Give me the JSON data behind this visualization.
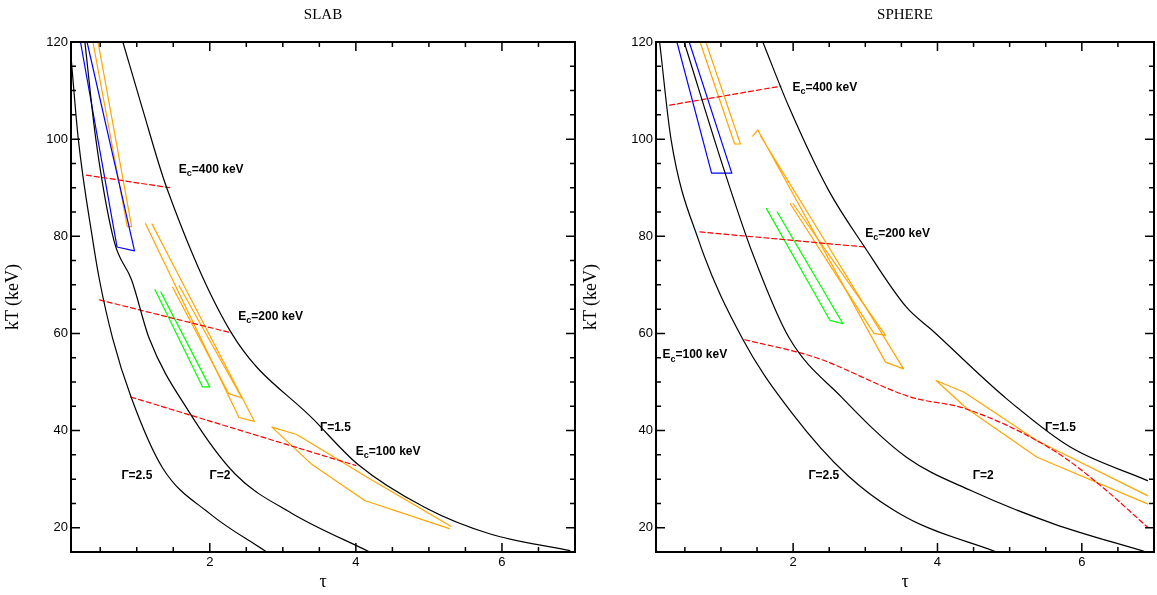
{
  "chart_data": [
    {
      "type": "line",
      "title": "SLAB",
      "xlabel": "τ",
      "ylabel": "kT (keV)",
      "marker": "none",
      "xlim": [
        0.1,
        7
      ],
      "ylim": [
        15,
        120
      ],
      "xticks": [
        {
          "value": 0.5,
          "label": null
        },
        {
          "value": 1,
          "label": null
        },
        {
          "value": 1.5,
          "label": null
        },
        2,
        {
          "value": 2.5,
          "label": null
        },
        {
          "value": 3,
          "label": null
        },
        {
          "value": 3.5,
          "label": null
        },
        4,
        {
          "value": 4.5,
          "label": null
        },
        {
          "value": 5,
          "label": null
        },
        {
          "value": 5.5,
          "label": null
        },
        6,
        {
          "value": 6.5,
          "label": null
        }
      ],
      "yticks": [
        20,
        {
          "value": 25,
          "label": null
        },
        {
          "value": 30,
          "label": null
        },
        {
          "value": 35,
          "label": null
        },
        40,
        {
          "value": 45,
          "label": null
        },
        {
          "value": 50,
          "label": null
        },
        {
          "value": 55,
          "label": null
        },
        60,
        {
          "value": 65,
          "label": null
        },
        {
          "value": 70,
          "label": null
        },
        {
          "value": 75,
          "label": null
        },
        80,
        {
          "value": 85,
          "label": null
        },
        {
          "value": 90,
          "label": null
        },
        {
          "value": 95,
          "label": null
        },
        100,
        {
          "value": 105,
          "label": null
        },
        {
          "value": 110,
          "label": null
        },
        {
          "value": 115,
          "label": null
        },
        120
      ],
      "series": [
        {
          "color": "#000000",
          "x": [
            0.1,
            0.2,
            0.4,
            0.49,
            0.67,
            0.92,
            1.35,
            2.0,
            2.78
          ],
          "values": [
            117,
            100,
            79,
            71,
            59,
            47,
            32.4,
            22.9,
            15
          ]
        },
        {
          "color": "#000000",
          "x": [
            0.29,
            0.44,
            0.69,
            0.93,
            1.17,
            1.71,
            2.35,
            3.12,
            4.19
          ],
          "values": [
            120,
            100,
            79,
            71,
            59,
            44,
            31,
            23,
            15
          ]
        },
        {
          "color": "#000000",
          "x": [
            0.81,
            1.07,
            1.41,
            2.3,
            3.44,
            4.03,
            4.94,
            5.84,
            6.93
          ],
          "values": [
            120,
            106.7,
            90,
            60,
            42,
            33,
            24.2,
            18.7,
            15.3
          ]
        },
        {
          "color": "#ff0000",
          "line_style": "dashed",
          "x": [
            0.31,
            1.45
          ],
          "values": [
            92.6,
            90
          ]
        },
        {
          "color": "#ff0000",
          "line_style": "dashed",
          "x": [
            0.49,
            2.3
          ],
          "values": [
            66.9,
            60.1
          ]
        },
        {
          "color": "#ff0000",
          "line_style": "dashed",
          "x": [
            0.92,
            4.0
          ],
          "values": [
            46.9,
            32.8
          ]
        },
        {
          "color": "#0000ff",
          "x": [
            0.23,
            0.73,
            0.97,
            0.32
          ],
          "values": [
            120,
            77.8,
            77,
            120
          ]
        },
        {
          "color": "#ffa500",
          "x": [
            0.4,
            0.87,
            0.93,
            0.47
          ],
          "values": [
            120,
            82,
            82,
            120
          ]
        },
        {
          "color": "#ffa500",
          "x": [
            1.12,
            2.4,
            2.61,
            1.21
          ],
          "values": [
            82.6,
            42.7,
            41.9,
            82.5
          ]
        },
        {
          "color": "#ffa500",
          "x": [
            1.49,
            2.26,
            2.44,
            1.58
          ],
          "values": [
            69.5,
            47.6,
            46.7,
            69.8
          ]
        },
        {
          "color": "#ffa500",
          "x": [
            5.28,
            4.12,
            3.4,
            2.85,
            3.19,
            4.2,
            5.3
          ],
          "values": [
            19.8,
            25.6,
            33,
            40.7,
            39.2,
            30,
            20.3
          ]
        },
        {
          "color": "#00ff00",
          "x": [
            1.33,
            2.0,
            1.9,
            1.25
          ],
          "values": [
            68.5,
            49,
            49,
            69
          ]
        }
      ],
      "annotations": [
        "E$_{c}$=400 keV",
        "E$_{c}$=200 keV",
        "E$_{c}$=100 keV",
        "Γ=1.5",
        "Γ=2.5",
        "Γ=2"
      ]
    },
    {
      "type": "line",
      "title": "SPHERE",
      "xlabel": "τ",
      "ylabel": "kT (keV)",
      "marker": "none",
      "xlim": [
        0.1,
        7
      ],
      "ylim": [
        15,
        120
      ],
      "xticks": [
        {
          "value": 0.5,
          "label": null
        },
        {
          "value": 1,
          "label": null
        },
        {
          "value": 1.5,
          "label": null
        },
        2,
        {
          "value": 2.5,
          "label": null
        },
        {
          "value": 3,
          "label": null
        },
        {
          "value": 3.5,
          "label": null
        },
        4,
        {
          "value": 4.5,
          "label": null
        },
        {
          "value": 5,
          "label": null
        },
        {
          "value": 5.5,
          "label": null
        },
        6,
        {
          "value": 6.5,
          "label": null
        }
      ],
      "yticks": [
        20,
        {
          "value": 25,
          "label": null
        },
        {
          "value": 30,
          "label": null
        },
        {
          "value": 35,
          "label": null
        },
        40,
        {
          "value": 45,
          "label": null
        },
        {
          "value": 50,
          "label": null
        },
        {
          "value": 55,
          "label": null
        },
        60,
        {
          "value": 65,
          "label": null
        },
        {
          "value": 70,
          "label": null
        },
        {
          "value": 75,
          "label": null
        },
        80,
        {
          "value": 85,
          "label": null
        },
        {
          "value": 90,
          "label": null
        },
        {
          "value": 95,
          "label": null
        },
        100,
        {
          "value": 105,
          "label": null
        },
        {
          "value": 110,
          "label": null
        },
        {
          "value": 115,
          "label": null
        },
        120
      ],
      "series": [
        {
          "color": "#000000",
          "x": [
            0.15,
            0.31,
            0.69,
            1.31,
            1.99,
            2.76,
            3.57,
            4.82
          ],
          "values": [
            120,
            99.8,
            79.2,
            58.6,
            43.5,
            30.7,
            22.1,
            15
          ]
        },
        {
          "color": "#000000",
          "x": [
            0.49,
            1.06,
            1.44,
            1.94,
            2.67,
            3.57,
            4.47,
            5.61,
            6.89
          ],
          "values": [
            120,
            92.9,
            76.4,
            59.2,
            46.9,
            34.5,
            27.6,
            20.8,
            15
          ]
        },
        {
          "color": "#000000",
          "x": [
            1.58,
            1.94,
            2.49,
            2.99,
            3.57,
            3.93,
            4.93,
            5.84,
            6.91
          ],
          "values": [
            120,
            106.7,
            89.5,
            77.8,
            65.4,
            60.6,
            46.9,
            36.6,
            29.7
          ]
        },
        {
          "color": "#ff0000",
          "line_style": "dashed",
          "x": [
            0.29,
            1.83
          ],
          "values": [
            107,
            110.9
          ]
        },
        {
          "color": "#ff0000",
          "line_style": "dashed",
          "x": [
            0.71,
            2.99
          ],
          "values": [
            80.9,
            77.8
          ]
        },
        {
          "color": "#ff0000",
          "line_style": "dashed",
          "x": [
            1.33,
            2.3,
            3.63,
            4.39,
            5.61,
            6.29,
            6.91
          ],
          "values": [
            58.7,
            55.1,
            46.9,
            44.5,
            35.9,
            28.3,
            20.1
          ]
        },
        {
          "color": "#0000ff",
          "x": [
            0.39,
            0.87,
            1.15,
            0.56
          ],
          "values": [
            120,
            93,
            93,
            120
          ]
        },
        {
          "color": "#ffa500",
          "x": [
            0.71,
            1.19,
            1.27,
            0.79
          ],
          "values": [
            120,
            99,
            99,
            120
          ]
        },
        {
          "color": "#ffa500",
          "x": [
            1.44,
            1.51,
            3.28,
            3.53,
            1.55
          ],
          "values": [
            100.6,
            101.9,
            54.1,
            52.7,
            100.6
          ]
        },
        {
          "color": "#ffa500",
          "x": [
            2.0,
            3.28,
            3.12,
            1.96
          ],
          "values": [
            86.7,
            59.6,
            60,
            86.7
          ]
        },
        {
          "color": "#ffa500",
          "x": [
            6.91,
            5.38,
            4.41,
            3.98,
            4.37,
            5.38,
            6.91
          ],
          "values": [
            24.9,
            34.5,
            44.5,
            50.3,
            47.9,
            37.9,
            26.6
          ]
        },
        {
          "color": "#00ff00",
          "x": [
            1.78,
            2.69,
            2.51,
            1.63
          ],
          "values": [
            85,
            62,
            62.7,
            85.7
          ]
        }
      ],
      "annotations": [
        "E$_{c}$=400 keV",
        "E$_{c}$=200 keV",
        "E$_{c}$=100 keV",
        "Γ=1.5",
        "Γ=2.5",
        "Γ=2"
      ]
    }
  ]
}
